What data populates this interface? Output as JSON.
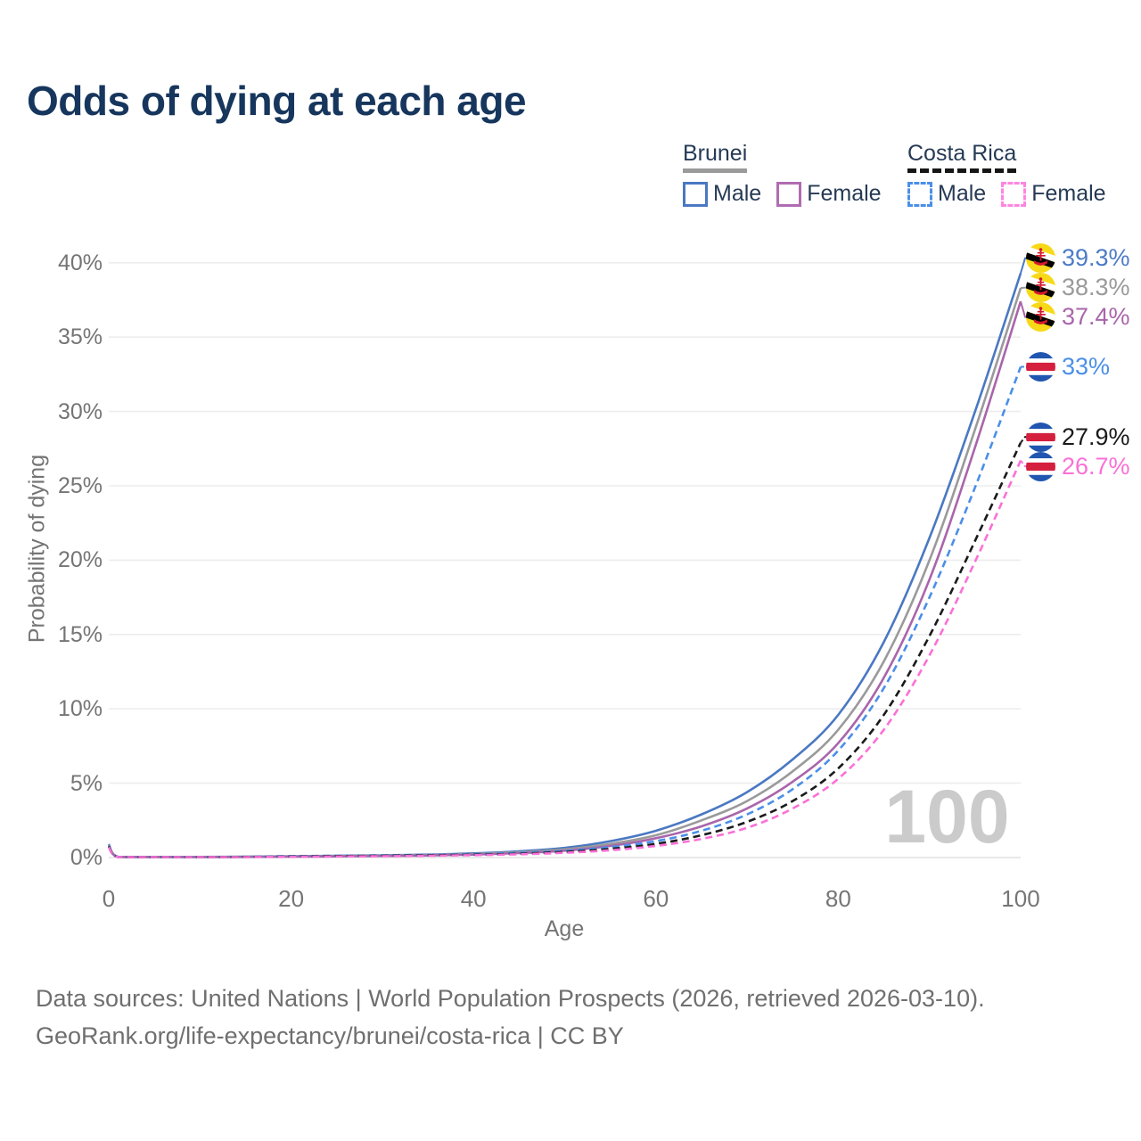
{
  "title": "Odds of dying at each age",
  "watermark": "100",
  "legend": {
    "groups": [
      {
        "name": "Brunei",
        "line_style": "solid",
        "line_color": "#9a9a9a",
        "items": [
          {
            "label": "Male",
            "color": "#4a78c2"
          },
          {
            "label": "Female",
            "color": "#b06cb2"
          }
        ]
      },
      {
        "name": "Costa Rica",
        "line_style": "dashed",
        "line_color": "#161616",
        "items": [
          {
            "label": "Male",
            "color": "#4b8fe8"
          },
          {
            "label": "Female",
            "color": "#ff85e0"
          }
        ]
      }
    ]
  },
  "y_axis": {
    "title": "Probability of dying",
    "tick_labels": [
      "0%",
      "5%",
      "10%",
      "15%",
      "20%",
      "25%",
      "30%",
      "35%",
      "40%"
    ],
    "tick_values": [
      0,
      5,
      10,
      15,
      20,
      25,
      30,
      35,
      40
    ]
  },
  "x_axis": {
    "title": "Age",
    "tick_labels": [
      "0",
      "20",
      "40",
      "60",
      "80",
      "100"
    ],
    "tick_values": [
      0,
      20,
      40,
      60,
      80,
      100
    ]
  },
  "end_labels": [
    {
      "text": "39.3%",
      "series": "Brunei Male",
      "flag": "brunei",
      "color": "#4c7bc6",
      "value": 39.3
    },
    {
      "text": "38.3%",
      "series": "Brunei Both sexes",
      "flag": "brunei",
      "color": "#9a9a9a",
      "value": 38.3
    },
    {
      "text": "37.4%",
      "series": "Brunei Female",
      "flag": "brunei",
      "color": "#a965ab",
      "value": 37.4
    },
    {
      "text": "33%",
      "series": "Costa Rica Male",
      "flag": "costa-rica",
      "color": "#4b8fe8",
      "value": 33
    },
    {
      "text": "27.9%",
      "series": "Costa Rica Both sexes",
      "flag": "costa-rica",
      "color": "#1a1a1a",
      "value": 27.9
    },
    {
      "text": "26.7%",
      "series": "Costa Rica Female",
      "flag": "costa-rica",
      "color": "#fb70d7",
      "value": 26.7
    }
  ],
  "footer": {
    "line1": "Data sources: United Nations | World Population Prospects (2026, retrieved 2026-03-10).",
    "line2": "GeoRank.org/life-expectancy/brunei/costa-rica | CC BY"
  },
  "flag_colors": {
    "brunei": {
      "field": "#f7d917",
      "stripe_white": "#ffffff",
      "stripe_black": "#000000",
      "crest": "#d6182e"
    },
    "costa_rica": {
      "blue": "#2156b0",
      "white": "#ffffff",
      "red": "#d51f3f"
    }
  },
  "chart_data": {
    "type": "line",
    "title": "Odds of dying at each age",
    "xlabel": "Age",
    "ylabel": "Probability of dying",
    "xlim": [
      0,
      100
    ],
    "ylim": [
      0,
      40
    ],
    "y_unit": "%",
    "grid": "horizontal",
    "legend_position": "top-right",
    "x": [
      0,
      1,
      5,
      10,
      15,
      20,
      25,
      30,
      35,
      40,
      45,
      50,
      55,
      60,
      65,
      70,
      75,
      80,
      85,
      90,
      95,
      100
    ],
    "series": [
      {
        "id": "brunei-male",
        "name": "Brunei Male",
        "country": "Brunei",
        "sex": "Male",
        "color": "#4a78c2",
        "dash": false,
        "values": [
          0.9,
          0.05,
          0.04,
          0.04,
          0.06,
          0.09,
          0.12,
          0.15,
          0.2,
          0.28,
          0.42,
          0.65,
          1.1,
          1.8,
          2.9,
          4.4,
          6.6,
          9.6,
          14.5,
          21.5,
          30.0,
          39.3
        ]
      },
      {
        "id": "brunei-both",
        "name": "Brunei Both sexes",
        "country": "Brunei",
        "sex": "Both",
        "color": "#9a9a9a",
        "dash": false,
        "values": [
          0.85,
          0.045,
          0.035,
          0.035,
          0.05,
          0.08,
          0.1,
          0.13,
          0.17,
          0.24,
          0.36,
          0.55,
          0.92,
          1.5,
          2.5,
          3.8,
          5.8,
          8.6,
          13.2,
          20.0,
          28.8,
          38.3
        ]
      },
      {
        "id": "brunei-female",
        "name": "Brunei Female",
        "country": "Brunei",
        "sex": "Female",
        "color": "#a965ab",
        "dash": false,
        "values": [
          0.8,
          0.04,
          0.03,
          0.03,
          0.04,
          0.06,
          0.08,
          0.11,
          0.14,
          0.2,
          0.3,
          0.46,
          0.78,
          1.3,
          2.1,
          3.3,
          5.1,
          7.7,
          12.1,
          18.7,
          27.6,
          37.4
        ]
      },
      {
        "id": "costa-rica-male",
        "name": "Costa Rica Male",
        "country": "Costa Rica",
        "sex": "Male",
        "color": "#4b8fe8",
        "dash": true,
        "values": [
          0.8,
          0.04,
          0.03,
          0.03,
          0.05,
          0.09,
          0.12,
          0.14,
          0.17,
          0.22,
          0.31,
          0.45,
          0.7,
          1.1,
          1.8,
          2.9,
          4.6,
          7.2,
          11.4,
          17.5,
          24.9,
          33.0
        ]
      },
      {
        "id": "costa-rica-both",
        "name": "Costa Rica Both sexes",
        "country": "Costa Rica",
        "sex": "Both",
        "color": "#1a1a1a",
        "dash": true,
        "values": [
          0.75,
          0.038,
          0.025,
          0.025,
          0.04,
          0.07,
          0.1,
          0.12,
          0.15,
          0.19,
          0.26,
          0.38,
          0.58,
          0.92,
          1.5,
          2.4,
          3.8,
          6.0,
          9.6,
          14.9,
          21.3,
          27.9
        ]
      },
      {
        "id": "costa-rica-female",
        "name": "Costa Rica Female",
        "country": "Costa Rica",
        "sex": "Female",
        "color": "#fb70d7",
        "dash": true,
        "values": [
          0.7,
          0.035,
          0.02,
          0.02,
          0.03,
          0.05,
          0.07,
          0.09,
          0.12,
          0.16,
          0.22,
          0.32,
          0.49,
          0.78,
          1.25,
          2.0,
          3.3,
          5.3,
          8.6,
          13.6,
          19.9,
          26.7
        ]
      }
    ]
  }
}
